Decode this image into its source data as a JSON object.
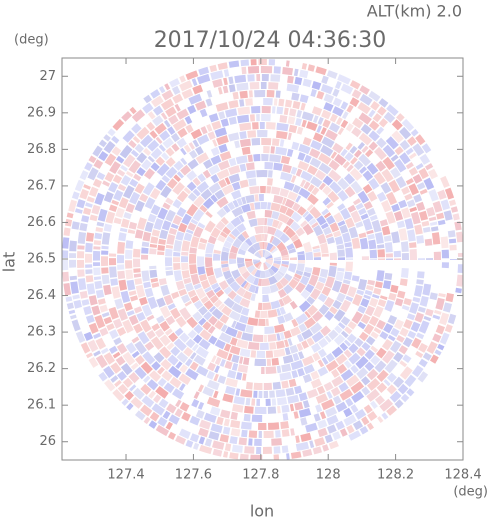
{
  "chart_data": {
    "type": "radar-field",
    "title": "2017/10/24 04:36:30",
    "altitude_label": "ALT(km) 2.0",
    "y_unit": "(deg)",
    "x_unit": "(deg)",
    "xlabel": "lon",
    "ylabel": "lat",
    "xlim": [
      127.21,
      128.4
    ],
    "ylim": [
      25.95,
      27.05
    ],
    "xticks": [
      127.4,
      127.6,
      127.8,
      128.0,
      128.2,
      128.4
    ],
    "yticks": [
      26.0,
      26.1,
      26.2,
      26.3,
      26.4,
      26.5,
      26.6,
      26.7,
      26.8,
      26.9,
      27.0
    ]
  }
}
